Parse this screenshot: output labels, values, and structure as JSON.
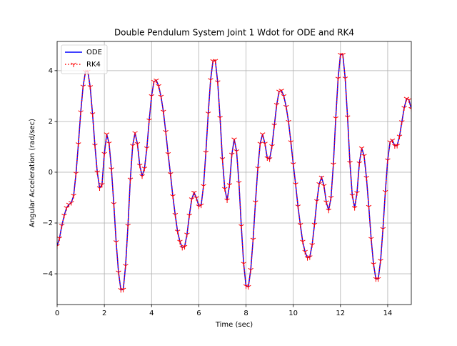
{
  "chart_data": {
    "type": "line",
    "title": "Double Pendulum System Joint 1 Wdot for ODE and RK4",
    "x_label": "Time (sec)",
    "y_label": "Angular Acceleration (rad/sec)",
    "x": [
      0,
      0.1,
      0.2,
      0.3,
      0.4,
      0.5,
      0.6,
      0.7,
      0.8,
      0.9,
      1.0,
      1.1,
      1.2,
      1.3,
      1.4,
      1.5,
      1.6,
      1.7,
      1.8,
      1.9,
      2.0,
      2.1,
      2.2,
      2.3,
      2.4,
      2.5,
      2.6,
      2.7,
      2.8,
      2.9,
      3.0,
      3.1,
      3.2,
      3.3,
      3.4,
      3.5,
      3.6,
      3.7,
      3.8,
      3.9,
      4.0,
      4.1,
      4.2,
      4.3,
      4.4,
      4.5,
      4.6,
      4.7,
      4.8,
      4.9,
      5.0,
      5.1,
      5.2,
      5.3,
      5.4,
      5.5,
      5.6,
      5.7,
      5.8,
      5.9,
      6.0,
      6.1,
      6.2,
      6.3,
      6.4,
      6.5,
      6.6,
      6.7,
      6.8,
      6.9,
      7.0,
      7.1,
      7.2,
      7.3,
      7.4,
      7.5,
      7.6,
      7.7,
      7.8,
      7.9,
      8.0,
      8.1,
      8.2,
      8.3,
      8.4,
      8.5,
      8.6,
      8.7,
      8.8,
      8.9,
      9.0,
      9.1,
      9.2,
      9.3,
      9.4,
      9.5,
      9.6,
      9.7,
      9.8,
      9.9,
      10.0,
      10.1,
      10.2,
      10.3,
      10.4,
      10.5,
      10.6,
      10.7,
      10.8,
      10.9,
      11.0,
      11.1,
      11.2,
      11.3,
      11.4,
      11.5,
      11.6,
      11.7,
      11.8,
      11.9,
      12.0,
      12.1,
      12.2,
      12.3,
      12.4,
      12.5,
      12.6,
      12.7,
      12.8,
      12.9,
      13.0,
      13.1,
      13.2,
      13.3,
      13.4,
      13.5,
      13.6,
      13.7,
      13.8,
      13.9,
      14.0,
      14.1,
      14.2,
      14.3,
      14.4,
      14.5,
      14.6,
      14.7,
      14.8,
      14.9,
      15.0
    ],
    "series": [
      {
        "name": "ODE",
        "color": "#0000ff",
        "style": "solid",
        "values": [
          -2.9,
          -2.6,
          -2.1,
          -1.7,
          -1.4,
          -1.27,
          -1.2,
          -0.92,
          -0.05,
          1.11,
          2.37,
          3.38,
          3.96,
          3.97,
          3.36,
          2.29,
          1.06,
          0.0,
          -0.62,
          -0.49,
          0.73,
          1.5,
          1.14,
          0.12,
          -1.25,
          -2.75,
          -3.94,
          -4.63,
          -4.62,
          -3.68,
          -2.1,
          -0.28,
          1.05,
          1.55,
          1.12,
          0.27,
          -0.15,
          0.15,
          0.95,
          2.05,
          3.0,
          3.57,
          3.62,
          3.4,
          2.98,
          2.39,
          1.59,
          0.72,
          -0.07,
          -0.94,
          -1.67,
          -2.33,
          -2.73,
          -2.97,
          -2.93,
          -2.45,
          -1.7,
          -1.06,
          -0.8,
          -1.01,
          -1.34,
          -1.3,
          -0.54,
          0.78,
          2.32,
          3.64,
          4.38,
          4.39,
          3.55,
          2.15,
          0.52,
          -0.65,
          -1.1,
          -0.5,
          0.7,
          1.3,
          0.83,
          -0.41,
          -2.12,
          -3.6,
          -4.48,
          -4.51,
          -3.84,
          -2.65,
          -1.18,
          0.16,
          1.13,
          1.5,
          1.13,
          0.56,
          0.52,
          1.03,
          1.85,
          2.66,
          3.18,
          3.22,
          3.0,
          2.58,
          1.99,
          1.19,
          0.32,
          -0.47,
          -1.34,
          -2.07,
          -2.73,
          -3.13,
          -3.37,
          -3.34,
          -2.86,
          -2.06,
          -1.13,
          -0.46,
          -0.2,
          -0.53,
          -1.18,
          -1.5,
          -1.0,
          0.31,
          2.13,
          3.69,
          4.63,
          4.63,
          3.7,
          2.17,
          0.38,
          -0.91,
          -1.4,
          -0.81,
          0.36,
          0.95,
          0.65,
          -0.21,
          -1.36,
          -2.62,
          -3.62,
          -4.2,
          -4.2,
          -3.48,
          -2.23,
          -0.77,
          0.48,
          1.19,
          1.26,
          1.04,
          1.05,
          1.41,
          1.98,
          2.54,
          2.9,
          2.85,
          2.5
        ]
      },
      {
        "name": "RK4",
        "color": "#ff0000",
        "style": "dotted",
        "marker": "tri",
        "values": [
          -2.9,
          -2.6,
          -2.1,
          -1.7,
          -1.4,
          -1.27,
          -1.2,
          -0.92,
          -0.05,
          1.11,
          2.37,
          3.38,
          3.96,
          3.97,
          3.36,
          2.29,
          1.06,
          0.0,
          -0.62,
          -0.49,
          0.73,
          1.5,
          1.14,
          0.12,
          -1.25,
          -2.75,
          -3.94,
          -4.63,
          -4.62,
          -3.68,
          -2.1,
          -0.28,
          1.05,
          1.55,
          1.12,
          0.27,
          -0.15,
          0.15,
          0.95,
          2.05,
          3.0,
          3.57,
          3.62,
          3.4,
          2.98,
          2.39,
          1.59,
          0.72,
          -0.07,
          -0.94,
          -1.67,
          -2.33,
          -2.73,
          -2.97,
          -2.93,
          -2.45,
          -1.7,
          -1.06,
          -0.8,
          -1.01,
          -1.34,
          -1.3,
          -0.54,
          0.78,
          2.32,
          3.64,
          4.38,
          4.39,
          3.55,
          2.15,
          0.52,
          -0.65,
          -1.1,
          -0.5,
          0.7,
          1.3,
          0.83,
          -0.41,
          -2.12,
          -3.6,
          -4.48,
          -4.51,
          -3.84,
          -2.65,
          -1.18,
          0.16,
          1.13,
          1.5,
          1.13,
          0.56,
          0.52,
          1.03,
          1.85,
          2.66,
          3.18,
          3.22,
          3.0,
          2.58,
          1.99,
          1.19,
          0.32,
          -0.47,
          -1.34,
          -2.07,
          -2.73,
          -3.13,
          -3.37,
          -3.34,
          -2.86,
          -2.06,
          -1.13,
          -0.46,
          -0.2,
          -0.53,
          -1.18,
          -1.5,
          -1.0,
          0.31,
          2.13,
          3.69,
          4.63,
          4.63,
          3.7,
          2.17,
          0.38,
          -0.91,
          -1.4,
          -0.81,
          0.36,
          0.95,
          0.65,
          -0.21,
          -1.36,
          -2.62,
          -3.62,
          -4.2,
          -4.2,
          -3.48,
          -2.23,
          -0.77,
          0.48,
          1.19,
          1.26,
          1.04,
          1.05,
          1.41,
          1.98,
          2.54,
          2.9,
          2.85,
          2.5
        ]
      }
    ],
    "xlim": [
      0,
      15
    ],
    "ylim": [
      -5.21,
      5.15
    ],
    "xticks": [
      0,
      2,
      4,
      6,
      8,
      10,
      12,
      14
    ],
    "yticks": [
      {
        "value": -4,
        "label": "−4"
      },
      {
        "value": -2,
        "label": "−2"
      },
      0,
      2,
      4
    ],
    "grid": true,
    "legend": "upper-left"
  }
}
